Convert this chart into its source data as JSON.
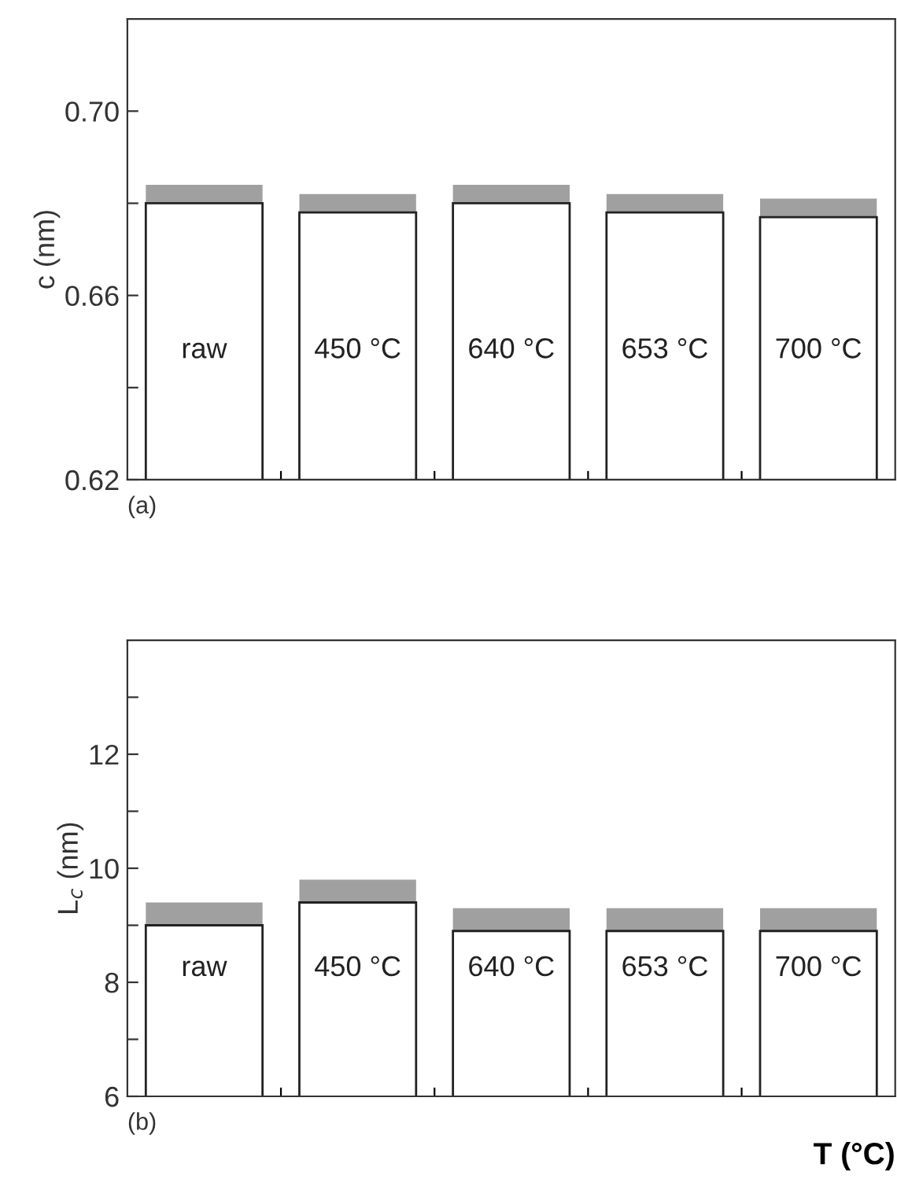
{
  "chart_data": [
    {
      "type": "bar",
      "ylabel": "c (nm)",
      "categories": [
        "raw",
        "450 °C",
        "640 °C",
        "653 °C",
        "700 °C"
      ],
      "color": "#ffffff",
      "values": [
        0.68,
        0.678,
        0.68,
        0.678,
        0.677
      ],
      "errors": [
        [
          0.68,
          0.684
        ],
        [
          0.678,
          0.682
        ],
        [
          0.68,
          0.684
        ],
        [
          0.678,
          0.682
        ],
        [
          0.677,
          0.681
        ]
      ],
      "ylim": [
        0.62,
        0.72
      ],
      "yticks": [
        0.62,
        {
          "value": 0.64,
          "label": null
        },
        0.66,
        {
          "value": 0.68,
          "label": null
        },
        "0.70"
      ],
      "tick_labels": "y",
      "annotations": [
        "(a)"
      ]
    },
    {
      "type": "bar",
      "ylabel": "L$_{c}$ (nm)",
      "xlabel": "T (°C)",
      "categories": [
        "raw",
        "450 °C",
        "640 °C",
        "653 °C",
        "700 °C"
      ],
      "color": "#ffffff",
      "values": [
        9.0,
        9.4,
        8.9,
        8.9,
        8.9
      ],
      "errors": [
        [
          9.0,
          9.4
        ],
        [
          9.4,
          9.8
        ],
        [
          8.9,
          9.3
        ],
        [
          8.9,
          9.3
        ],
        [
          8.9,
          9.3
        ]
      ],
      "ylim": [
        6,
        14
      ],
      "yticks": [
        6,
        {
          "value": 7,
          "label": null
        },
        8,
        {
          "value": 9,
          "label": null
        },
        10,
        {
          "value": 11,
          "label": null
        },
        12,
        {
          "value": 13,
          "label": null
        }
      ],
      "tick_labels": "y",
      "annotations": [
        "(b)"
      ]
    }
  ]
}
